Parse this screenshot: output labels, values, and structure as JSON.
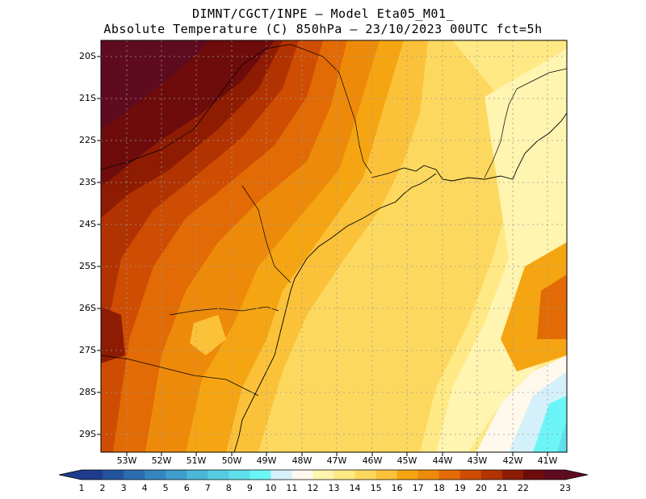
{
  "header": {
    "line1": "DIMNT/CGCT/INPE —  Model Eta05_M01_",
    "line2": "Absolute Temperature (C) 850hPa —  23/10/2023 00UTC fct=5h"
  },
  "map": {
    "lat_labels": [
      "20S",
      "21S",
      "22S",
      "23S",
      "24S",
      "25S",
      "26S",
      "27S",
      "28S",
      "29S"
    ],
    "lon_labels": [
      "53W",
      "52W",
      "51W",
      "50W",
      "49W",
      "48W",
      "47W",
      "46W",
      "45W",
      "44W",
      "43W",
      "42W",
      "41W"
    ]
  },
  "colorbar": {
    "labels": [
      "1",
      "2",
      "3",
      "4",
      "5",
      "6",
      "7",
      "8",
      "9",
      "10",
      "11",
      "12",
      "13",
      "14",
      "15",
      "16",
      "17",
      "18",
      "19",
      "20",
      "21",
      "22",
      "23"
    ],
    "colors": [
      "#1f3c8c",
      "#24549f",
      "#2c6db0",
      "#3586bf",
      "#3f9ecc",
      "#4bb6d8",
      "#55cce2",
      "#5fdfeb",
      "#6cf5f7",
      "#d4f1fb",
      "#fff8ec",
      "#fff4b0",
      "#ffe984",
      "#fdd85f",
      "#fbc239",
      "#f5a512",
      "#ee8a0a",
      "#e26b05",
      "#cf4d02",
      "#b23302",
      "#8e1c02",
      "#6e0c0c",
      "#5e0b20"
    ]
  },
  "layers": {
    "coastline_color": "#000000",
    "grid_color": "#9a9a9a"
  }
}
